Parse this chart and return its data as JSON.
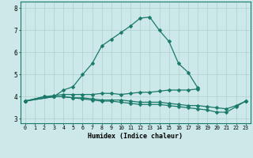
{
  "title": "",
  "xlabel": "Humidex (Indice chaleur)",
  "x": [
    0,
    1,
    2,
    3,
    4,
    5,
    6,
    7,
    8,
    9,
    10,
    11,
    12,
    13,
    14,
    15,
    16,
    17,
    18,
    19,
    20,
    21,
    22,
    23
  ],
  "line1": [
    3.8,
    null,
    4.0,
    4.0,
    4.3,
    4.45,
    5.0,
    5.5,
    6.3,
    6.6,
    6.9,
    7.2,
    7.55,
    7.6,
    7.0,
    6.5,
    5.5,
    5.1,
    4.4,
    null,
    null,
    null,
    null,
    null
  ],
  "line2": [
    3.8,
    null,
    4.0,
    4.05,
    4.1,
    4.1,
    4.1,
    4.1,
    4.15,
    4.15,
    4.1,
    4.15,
    4.2,
    4.2,
    4.25,
    4.3,
    4.3,
    4.3,
    4.35,
    null,
    null,
    null,
    null,
    null
  ],
  "line3": [
    3.8,
    null,
    null,
    4.0,
    4.0,
    3.95,
    3.95,
    3.9,
    3.85,
    3.85,
    3.85,
    3.8,
    3.75,
    3.75,
    3.75,
    3.7,
    3.65,
    3.6,
    3.6,
    3.55,
    3.5,
    3.45,
    3.6,
    3.8
  ],
  "line4": [
    3.8,
    null,
    null,
    4.0,
    4.0,
    3.95,
    3.9,
    3.85,
    3.8,
    3.8,
    3.75,
    3.7,
    3.65,
    3.65,
    3.65,
    3.6,
    3.55,
    3.5,
    3.45,
    3.4,
    3.3,
    3.3,
    3.55,
    3.8
  ],
  "color": "#1a7a6a",
  "bg_color": "#cce8e8",
  "grid_color": "#aed0d0",
  "ylim": [
    2.8,
    8.3
  ],
  "yticks": [
    3,
    4,
    5,
    6,
    7,
    8
  ],
  "xlim": [
    -0.5,
    23.5
  ],
  "marker": "D",
  "markersize": 2.5,
  "linewidth": 0.9
}
